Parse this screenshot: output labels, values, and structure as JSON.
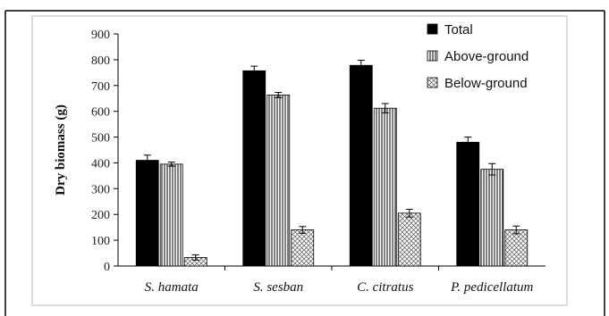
{
  "chart_data": {
    "type": "bar",
    "categories": [
      "S. hamata",
      "S. sesban",
      "C. citratus",
      "P. pedicellatum"
    ],
    "series": [
      {
        "name": "Total",
        "values": [
          410,
          757,
          778,
          480
        ],
        "errors": [
          20,
          18,
          20,
          20
        ],
        "color": "#000000",
        "pattern": "solid"
      },
      {
        "name": "Above-ground",
        "values": [
          395,
          663,
          612,
          375
        ],
        "errors": [
          8,
          10,
          18,
          22
        ],
        "color": "#ffffff",
        "pattern": "vertical-lines"
      },
      {
        "name": "Below-ground",
        "values": [
          33,
          140,
          205,
          140
        ],
        "errors": [
          10,
          13,
          15,
          15
        ],
        "color": "#ffffff",
        "pattern": "crosshatch"
      }
    ],
    "title": "",
    "xlabel": "",
    "ylabel": "Dry biomass (g)",
    "ylim": [
      0,
      900
    ],
    "yticks": [
      0,
      100,
      200,
      300,
      400,
      500,
      600,
      700,
      800,
      900
    ],
    "grid": false,
    "legend_position": "top-right"
  }
}
